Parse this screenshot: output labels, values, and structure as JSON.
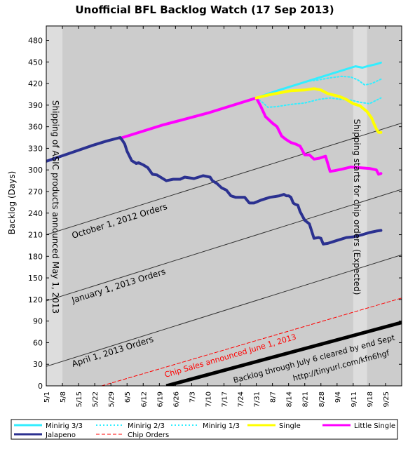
{
  "chart_data": {
    "type": "line",
    "title": "Unofficial BFL Backlog Watch (17 Sep 2013)",
    "xlabel": "",
    "ylabel": "Backlog (Days)",
    "x_ticks": [
      "5/1",
      "5/8",
      "5/15",
      "5/22",
      "5/29",
      "6/5",
      "6/12",
      "6/19",
      "6/26",
      "7/3",
      "7/10",
      "7/17",
      "7/24",
      "7/31",
      "8/7",
      "8/14",
      "8/21",
      "8/28",
      "9/4",
      "9/11",
      "9/18",
      "9/25"
    ],
    "xlim": [
      0,
      154
    ],
    "ylim": [
      0,
      500
    ],
    "y_ticks": [
      0,
      30,
      60,
      90,
      120,
      150,
      180,
      210,
      240,
      270,
      300,
      330,
      360,
      390,
      420,
      450,
      480
    ],
    "grid": false,
    "legend_position": "bottom",
    "shaded_bands": [
      {
        "x0": 0,
        "x1": 7,
        "color": "#dddddd"
      },
      {
        "x0": 7,
        "x1": 154,
        "color": "#cccccc"
      },
      {
        "x0": 133,
        "x1": 139,
        "color": "#dddddd"
      }
    ],
    "colors": {
      "minirig": "#33eeff",
      "single": "#ffff00",
      "little_single": "#ff00ff",
      "jalapeno": "#2b3190",
      "chip_orders": "#ff0000",
      "order_lines": "#333333",
      "backlog_line": "#000000"
    },
    "series": [
      {
        "name": "Minirig 3/3",
        "style": "solid",
        "width": 3,
        "x": [
          91,
          100,
          110,
          120,
          130,
          134,
          137,
          139,
          143,
          145
        ],
        "y": [
          400,
          410,
          420,
          430,
          440,
          444,
          442,
          444,
          447,
          449
        ]
      },
      {
        "name": "Minirig 2/3",
        "style": "dotted",
        "width": 2,
        "x": [
          91,
          95,
          98,
          103,
          108,
          113,
          118,
          123,
          128,
          132,
          135,
          138,
          141,
          145
        ],
        "y": [
          400,
          404,
          408,
          413,
          418,
          423,
          425,
          428,
          430,
          429,
          425,
          418,
          420,
          426
        ]
      },
      {
        "name": "Minirig 1/3",
        "style": "dotted",
        "width": 2,
        "x": [
          91,
          94,
          96,
          100,
          106,
          112,
          118,
          123,
          128,
          132,
          136,
          140,
          145
        ],
        "y": [
          400,
          393,
          387,
          388,
          391,
          393,
          398,
          400,
          398,
          397,
          394,
          392,
          400
        ]
      },
      {
        "name": "Single",
        "style": "solid",
        "width": 4,
        "x": [
          91,
          96,
          101,
          106,
          112,
          116,
          119,
          122,
          127,
          130,
          133,
          136,
          139,
          141,
          142,
          143,
          144,
          145
        ],
        "y": [
          400,
          404,
          407,
          410,
          411,
          413,
          411,
          406,
          402,
          398,
          392,
          389,
          381,
          372,
          364,
          357,
          352,
          352
        ]
      },
      {
        "name": "Little Single",
        "style": "solid",
        "width": 4,
        "x": [
          32,
          50,
          70,
          91,
          93,
          95,
          98,
          100,
          102,
          104,
          106,
          108,
          110,
          112,
          114,
          116,
          118,
          120,
          121,
          123,
          125,
          128,
          132,
          136,
          140,
          143,
          144,
          145
        ],
        "y": [
          344,
          362,
          379,
          400,
          388,
          374,
          365,
          360,
          347,
          342,
          338,
          336,
          333,
          321,
          321,
          315,
          316,
          318,
          319,
          298,
          299,
          301,
          304,
          303,
          302,
          300,
          294,
          295
        ]
      },
      {
        "name": "Jalapeno",
        "style": "solid",
        "width": 4,
        "x": [
          0,
          10,
          20,
          26,
          32,
          33,
          34,
          35,
          37,
          39,
          40,
          42,
          44,
          46,
          48,
          52,
          55,
          56,
          58,
          60,
          64,
          66,
          68,
          71,
          72,
          74,
          76,
          78,
          80,
          82,
          84,
          86,
          88,
          90,
          93,
          95,
          97,
          99,
          101,
          103,
          104,
          105,
          106,
          107,
          108,
          109,
          110,
          112,
          114,
          116,
          118,
          119,
          120,
          122,
          124,
          126,
          128,
          130,
          133,
          137,
          140,
          143,
          145
        ],
        "y": [
          312,
          323,
          334,
          340,
          345,
          341,
          336,
          326,
          313,
          309,
          310,
          307,
          303,
          294,
          293,
          285,
          287,
          287,
          287,
          290,
          288,
          290,
          292,
          290,
          285,
          281,
          275,
          272,
          264,
          262,
          262,
          262,
          254,
          254,
          258,
          260,
          262,
          263,
          264,
          266,
          264,
          264,
          262,
          254,
          252,
          251,
          242,
          230,
          225,
          205,
          206,
          205,
          197,
          198,
          200,
          202,
          204,
          206,
          207,
          210,
          213,
          215,
          216
        ]
      },
      {
        "name": "Chip Orders",
        "style": "dashed",
        "width": 1,
        "x": [
          24,
          154
        ],
        "y": [
          0,
          122
        ]
      }
    ],
    "reference_lines": [
      {
        "label": "October 1, 2012 Orders",
        "x": [
          0,
          154
        ],
        "y": [
          210,
          365
        ],
        "color": "#333333"
      },
      {
        "label": "January 1, 2013 Orders",
        "x": [
          0,
          154
        ],
        "y": [
          118,
          273
        ],
        "color": "#333333"
      },
      {
        "label": "April 1, 2013 Orders",
        "x": [
          0,
          154
        ],
        "y": [
          27,
          182
        ],
        "color": "#333333"
      },
      {
        "label": "Backlog through July 6 cleared by end Sept",
        "x": [
          52,
          154
        ],
        "y": [
          0,
          88
        ],
        "color": "#000000"
      }
    ],
    "annotations": {
      "asic_shipping": "Shipping of ASIC products announced May 1, 2013",
      "chip_sales": "Chip Sales announced June 1, 2013",
      "chip_shipping": "Shipping starts for chip orders (Expected)",
      "url": "http://tinyurl.com/kfn6hgf"
    }
  }
}
